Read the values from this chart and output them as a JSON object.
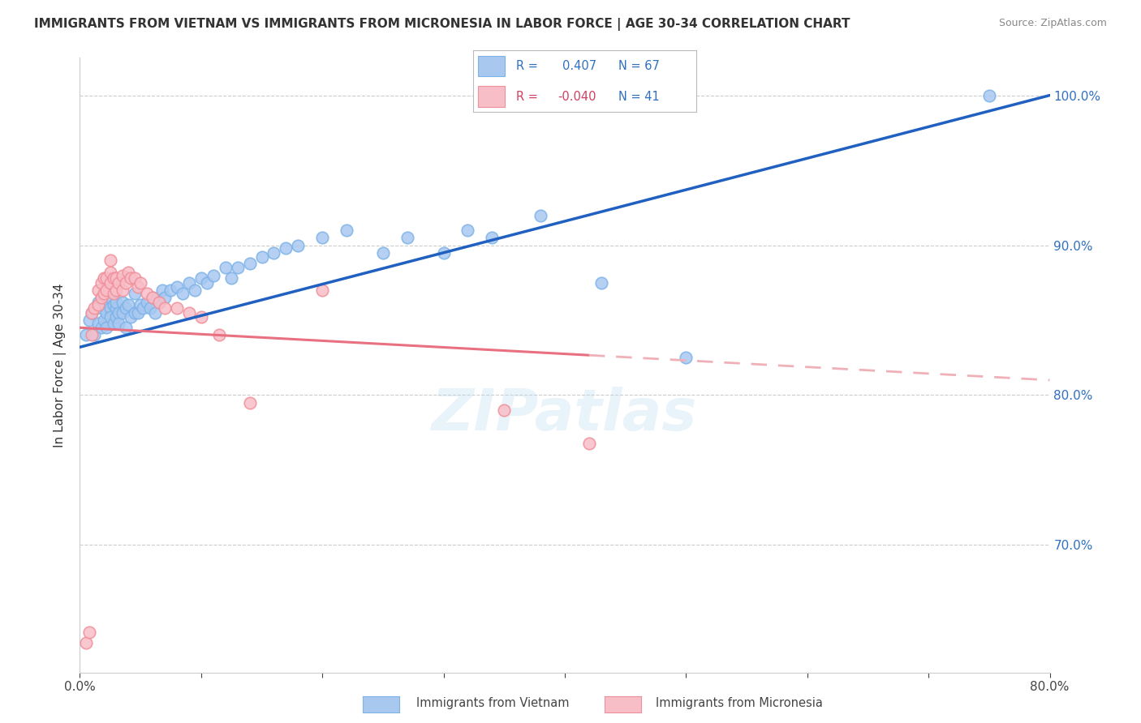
{
  "title": "IMMIGRANTS FROM VIETNAM VS IMMIGRANTS FROM MICRONESIA IN LABOR FORCE | AGE 30-34 CORRELATION CHART",
  "source": "Source: ZipAtlas.com",
  "ylabel": "In Labor Force | Age 30-34",
  "xmin": 0.0,
  "xmax": 0.8,
  "ymin": 0.615,
  "ymax": 1.025,
  "r_vietnam": 0.407,
  "n_vietnam": 67,
  "r_micronesia": -0.04,
  "n_micronesia": 41,
  "vietnam_color": "#A8C8F0",
  "vietnam_edge": "#7EB3E8",
  "micronesia_color": "#F8BEC8",
  "micronesia_edge": "#F0909A",
  "trend_vietnam_color": "#2060C0",
  "trend_micronesia_solid_color": "#E87080",
  "trend_micronesia_dash_color": "#F0B0B8",
  "legend_label_vietnam": "Immigrants from Vietnam",
  "legend_label_micronesia": "Immigrants from Micronesia",
  "ytick_values": [
    0.7,
    0.8,
    0.9,
    1.0
  ],
  "xtick_values": [
    0.0,
    0.1,
    0.2,
    0.3,
    0.4,
    0.5,
    0.6,
    0.7,
    0.8
  ],
  "vietnam_x": [
    0.005,
    0.008,
    0.01,
    0.012,
    0.015,
    0.015,
    0.018,
    0.018,
    0.02,
    0.02,
    0.022,
    0.022,
    0.025,
    0.025,
    0.025,
    0.028,
    0.028,
    0.03,
    0.03,
    0.03,
    0.032,
    0.032,
    0.035,
    0.035,
    0.038,
    0.038,
    0.04,
    0.042,
    0.045,
    0.045,
    0.048,
    0.05,
    0.052,
    0.055,
    0.058,
    0.06,
    0.062,
    0.065,
    0.068,
    0.07,
    0.075,
    0.08,
    0.085,
    0.09,
    0.095,
    0.1,
    0.105,
    0.11,
    0.12,
    0.125,
    0.13,
    0.14,
    0.15,
    0.16,
    0.17,
    0.18,
    0.2,
    0.22,
    0.25,
    0.27,
    0.3,
    0.32,
    0.34,
    0.38,
    0.43,
    0.5,
    0.75
  ],
  "vietnam_y": [
    0.84,
    0.85,
    0.855,
    0.84,
    0.848,
    0.862,
    0.845,
    0.858,
    0.85,
    0.86,
    0.845,
    0.855,
    0.858,
    0.865,
    0.852,
    0.86,
    0.848,
    0.858,
    0.852,
    0.862,
    0.855,
    0.848,
    0.862,
    0.855,
    0.858,
    0.845,
    0.86,
    0.852,
    0.868,
    0.855,
    0.855,
    0.86,
    0.858,
    0.862,
    0.858,
    0.865,
    0.855,
    0.862,
    0.87,
    0.865,
    0.87,
    0.872,
    0.868,
    0.875,
    0.87,
    0.878,
    0.875,
    0.88,
    0.885,
    0.878,
    0.885,
    0.888,
    0.892,
    0.895,
    0.898,
    0.9,
    0.905,
    0.91,
    0.895,
    0.905,
    0.895,
    0.91,
    0.905,
    0.92,
    0.875,
    0.825,
    1.0
  ],
  "micronesia_x": [
    0.005,
    0.008,
    0.01,
    0.01,
    0.012,
    0.015,
    0.015,
    0.018,
    0.018,
    0.02,
    0.02,
    0.022,
    0.022,
    0.025,
    0.025,
    0.025,
    0.028,
    0.028,
    0.03,
    0.03,
    0.032,
    0.035,
    0.035,
    0.038,
    0.04,
    0.042,
    0.045,
    0.048,
    0.05,
    0.055,
    0.06,
    0.065,
    0.07,
    0.08,
    0.09,
    0.1,
    0.115,
    0.14,
    0.2,
    0.35,
    0.42
  ],
  "micronesia_y": [
    0.635,
    0.642,
    0.84,
    0.855,
    0.858,
    0.87,
    0.86,
    0.875,
    0.865,
    0.878,
    0.868,
    0.878,
    0.87,
    0.875,
    0.882,
    0.89,
    0.878,
    0.868,
    0.878,
    0.87,
    0.875,
    0.87,
    0.88,
    0.875,
    0.882,
    0.878,
    0.878,
    0.872,
    0.875,
    0.868,
    0.865,
    0.862,
    0.858,
    0.858,
    0.855,
    0.852,
    0.84,
    0.795,
    0.87,
    0.79,
    0.768
  ],
  "trend_viet_x0": 0.0,
  "trend_viet_y0": 0.832,
  "trend_viet_x1": 0.8,
  "trend_viet_y1": 1.0,
  "trend_micro_x0": 0.0,
  "trend_micro_y0": 0.845,
  "trend_micro_x1": 0.8,
  "trend_micro_y1": 0.81,
  "trend_micro_solid_end": 0.42
}
